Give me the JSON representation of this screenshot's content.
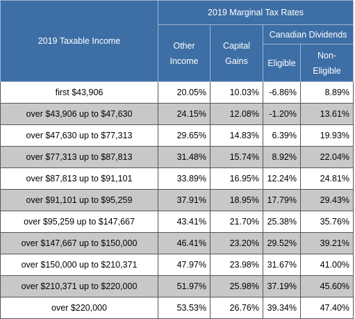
{
  "table": {
    "header": {
      "income": "2019 Taxable Income",
      "rates": "2019 Marginal Tax Rates",
      "other": "Other Income",
      "capital": "Capital Gains",
      "dividends": "Canadian Dividends",
      "eligible": "Eligible",
      "non_eligible": "Non-Eligible"
    },
    "rows": [
      [
        "first $43,906",
        "20.05%",
        "10.03%",
        "-6.86%",
        "8.89%"
      ],
      [
        "over $43,906 up to $47,630",
        "24.15%",
        "12.08%",
        "-1.20%",
        "13.61%"
      ],
      [
        "over $47,630 up to $77,313",
        "29.65%",
        "14.83%",
        "6.39%",
        "19.93%"
      ],
      [
        "over $77,313 up to $87,813",
        "31.48%",
        "15.74%",
        "8.92%",
        "22.04%"
      ],
      [
        "over $87,813 up to $91,101",
        "33.89%",
        "16.95%",
        "12.24%",
        "24.81%"
      ],
      [
        "over $91,101 up to $95,259",
        "37.91%",
        "18.95%",
        "17.79%",
        "29.43%"
      ],
      [
        "over $95,259 up to $147,667",
        "43.41%",
        "21.70%",
        "25.38%",
        "35.76%"
      ],
      [
        "over $147,667 up to $150,000",
        "46.41%",
        "23.20%",
        "29.52%",
        "39.21%"
      ],
      [
        "over $150,000 up to $210,371",
        "47.97%",
        "23.98%",
        "31.67%",
        "41.00%"
      ],
      [
        "over $210,371 up to $220,000",
        "51.97%",
        "25.98%",
        "37.19%",
        "45.60%"
      ],
      [
        "over $220,000",
        "53.53%",
        "26.76%",
        "39.34%",
        "47.40%"
      ]
    ]
  }
}
